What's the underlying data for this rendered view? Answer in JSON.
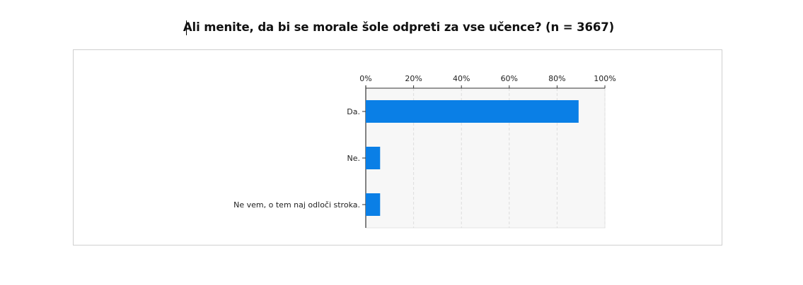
{
  "title": "Ali menite, da bi se morale šole odpreti za vse učence? (n = 3667)",
  "chart_data": {
    "type": "bar",
    "orientation": "horizontal",
    "title": "Ali menite, da bi se morale šole odpreti za vse učence? (n = 3667)",
    "categories": [
      "Da.",
      "Ne.",
      "Ne vem, o tem naj odloči stroka."
    ],
    "values": [
      89,
      6,
      6
    ],
    "value_unit": "%",
    "xlim": [
      0,
      100
    ],
    "x_ticks": [
      "0%",
      "20%",
      "40%",
      "60%",
      "80%",
      "100%"
    ],
    "x_axis_position": "top",
    "grid": true,
    "colors": {
      "bar": "#0a7fe6",
      "plot_background": "#f7f7f7",
      "grid": "#dddddd",
      "axis": "#333333"
    }
  }
}
